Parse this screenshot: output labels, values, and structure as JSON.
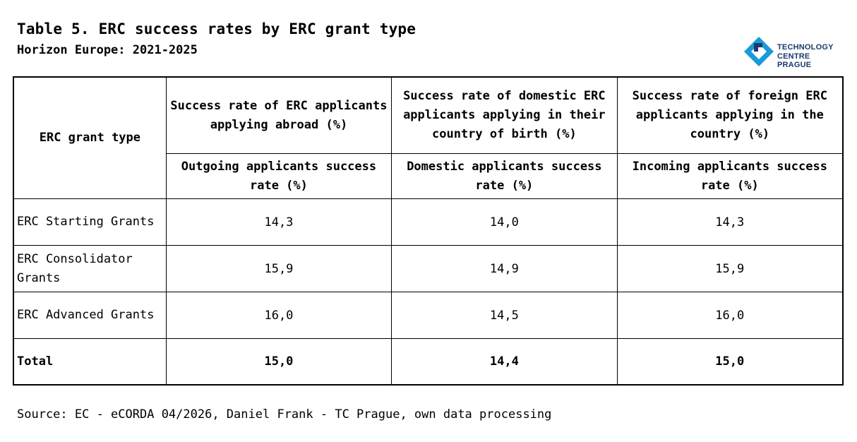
{
  "title": "Table 5. ERC success rates by ERC grant type",
  "subtitle": "Horizon Europe: 2021-2025",
  "logo": {
    "line1": "TECHNOLOGY",
    "line2": "CENTRE PRAGUE",
    "icon": "tc-prague-logo-icon",
    "colors": [
      "#1a9ad9",
      "#1b3a6b"
    ]
  },
  "table": {
    "col0_header": "ERC grant type",
    "headers_top": [
      "Success rate of ERC applicants applying abroad (%)",
      "Success rate of domestic ERC applicants applying in their country of birth (%)",
      "Success rate of foreign ERC applicants applying in the country (%)"
    ],
    "headers_sub": [
      "Outgoing applicants success rate (%)",
      "Domestic applicants success rate (%)",
      "Incoming applicants success rate (%)"
    ],
    "rows": [
      {
        "type": "ERC Starting Grants",
        "values": [
          "14,3",
          "14,0",
          "14,3"
        ]
      },
      {
        "type": "ERC Consolidator Grants",
        "values": [
          "15,9",
          "14,9",
          "15,9"
        ]
      },
      {
        "type": "ERC Advanced Grants",
        "values": [
          "16,0",
          "14,5",
          "16,0"
        ]
      },
      {
        "type": "Total",
        "values": [
          "15,0",
          "14,4",
          "15,0"
        ]
      }
    ]
  },
  "source": "Source: EC - eCORDA 04/2026, Daniel Frank - TC Prague, own data processing"
}
